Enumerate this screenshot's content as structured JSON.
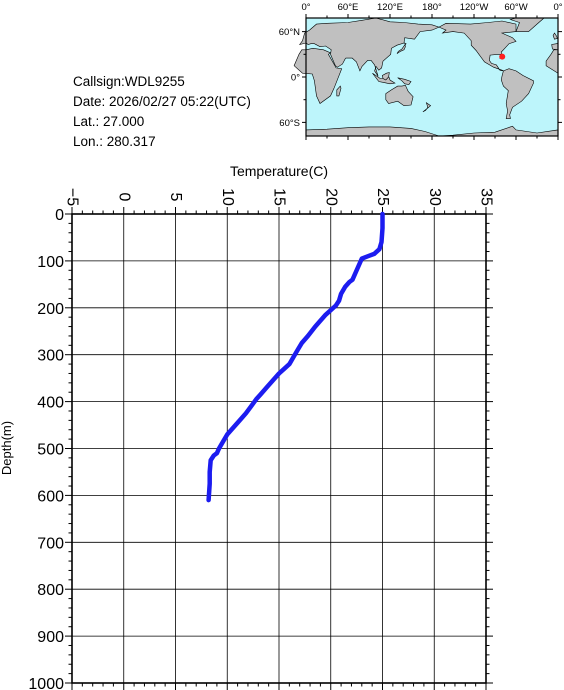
{
  "info": {
    "callsign": "Callsign:WDL9255",
    "date": "Date:  2026/02/27 05:22(UTC)",
    "lat": "Lat.:  27.000",
    "lon": "Lon.:  280.317"
  },
  "map": {
    "lon_labels": [
      "0°",
      "60°E",
      "120°E",
      "180°",
      "120°W",
      "60°W",
      "0°"
    ],
    "lat_labels": [
      "60°N",
      "0°",
      "60°S"
    ],
    "ocean_color": "#bdf5fb",
    "land_color": "#c0c0c0",
    "marker_color": "#ff2020",
    "marker": {
      "lon": 280.317,
      "lat": 27.0
    }
  },
  "chart_data": {
    "type": "line",
    "xlabel": "Temperature(C)",
    "ylabel": "Depth(m)",
    "xlim": [
      -5,
      35
    ],
    "ylim": [
      0,
      1000
    ],
    "y_inverted": true,
    "x_axis_position": "top",
    "x_ticks": [
      -5,
      0,
      5,
      10,
      15,
      20,
      25,
      30,
      35
    ],
    "y_ticks": [
      0,
      100,
      200,
      300,
      400,
      500,
      600,
      700,
      800,
      900,
      1000
    ],
    "grid": true,
    "series": [
      {
        "color": "#1c1cf0",
        "x": [
          25.0,
          25.0,
          24.9,
          24.7,
          24.2,
          23.6,
          23.0,
          22.7,
          22.4,
          22.1,
          21.8,
          21.4,
          21.0,
          20.8,
          20.5,
          19.5,
          18.5,
          17.8,
          17.2,
          16.8,
          16.4,
          16.0,
          15.5,
          15.0,
          14.4,
          13.8,
          13.2,
          12.8,
          12.3,
          11.8,
          11.2,
          10.6,
          10.0,
          9.6,
          9.2,
          9.0,
          8.7,
          8.4,
          8.3,
          8.3,
          8.2
        ],
        "y": [
          0,
          30,
          60,
          75,
          85,
          90,
          95,
          110,
          125,
          140,
          145,
          155,
          170,
          185,
          195,
          215,
          240,
          260,
          275,
          290,
          305,
          320,
          330,
          340,
          355,
          370,
          385,
          395,
          410,
          425,
          440,
          455,
          470,
          485,
          500,
          510,
          515,
          525,
          550,
          575,
          610
        ]
      }
    ]
  }
}
